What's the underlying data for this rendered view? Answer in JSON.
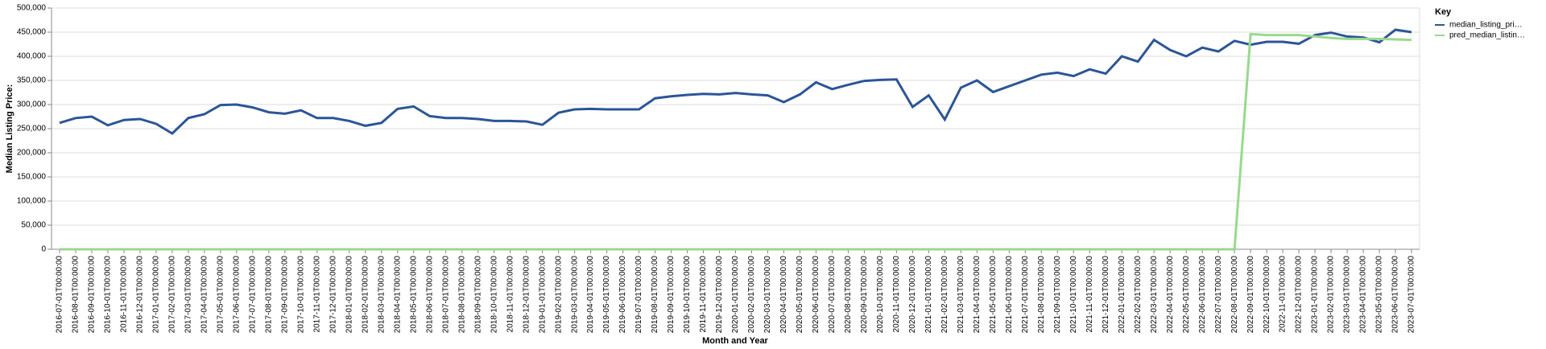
{
  "chart_data": {
    "type": "line",
    "x_label": "Month and Year",
    "y_label": "Median Listing Price:",
    "legend_title": "Key",
    "legend_position": "right",
    "grid": true,
    "categories": [
      "2016-07-01T00:00:00",
      "2016-08-01T00:00:00",
      "2016-09-01T00:00:00",
      "2016-10-01T00:00:00",
      "2016-11-01T00:00:00",
      "2016-12-01T00:00:00",
      "2017-01-01T00:00:00",
      "2017-02-01T00:00:00",
      "2017-03-01T00:00:00",
      "2017-04-01T00:00:00",
      "2017-05-01T00:00:00",
      "2017-06-01T00:00:00",
      "2017-07-01T00:00:00",
      "2017-08-01T00:00:00",
      "2017-09-01T00:00:00",
      "2017-10-01T00:00:00",
      "2017-11-01T00:00:00",
      "2017-12-01T00:00:00",
      "2018-01-01T00:00:00",
      "2018-02-01T00:00:00",
      "2018-03-01T00:00:00",
      "2018-04-01T00:00:00",
      "2018-05-01T00:00:00",
      "2018-06-01T00:00:00",
      "2018-07-01T00:00:00",
      "2018-08-01T00:00:00",
      "2018-09-01T00:00:00",
      "2018-10-01T00:00:00",
      "2018-11-01T00:00:00",
      "2018-12-01T00:00:00",
      "2019-01-01T00:00:00",
      "2019-02-01T00:00:00",
      "2019-03-01T00:00:00",
      "2019-04-01T00:00:00",
      "2019-05-01T00:00:00",
      "2019-06-01T00:00:00",
      "2019-07-01T00:00:00",
      "2019-08-01T00:00:00",
      "2019-09-01T00:00:00",
      "2019-10-01T00:00:00",
      "2019-11-01T00:00:00",
      "2019-12-01T00:00:00",
      "2020-01-01T00:00:00",
      "2020-02-01T00:00:00",
      "2020-03-01T00:00:00",
      "2020-04-01T00:00:00",
      "2020-05-01T00:00:00",
      "2020-06-01T00:00:00",
      "2020-07-01T00:00:00",
      "2020-08-01T00:00:00",
      "2020-09-01T00:00:00",
      "2020-10-01T00:00:00",
      "2020-11-01T00:00:00",
      "2020-12-01T00:00:00",
      "2021-01-01T00:00:00",
      "2021-02-01T00:00:00",
      "2021-03-01T00:00:00",
      "2021-04-01T00:00:00",
      "2021-05-01T00:00:00",
      "2021-06-01T00:00:00",
      "2021-07-01T00:00:00",
      "2021-08-01T00:00:00",
      "2021-09-01T00:00:00",
      "2021-10-01T00:00:00",
      "2021-11-01T00:00:00",
      "2021-12-01T00:00:00",
      "2022-01-01T00:00:00",
      "2022-02-01T00:00:00",
      "2022-03-01T00:00:00",
      "2022-04-01T00:00:00",
      "2022-05-01T00:00:00",
      "2022-06-01T00:00:00",
      "2022-07-01T00:00:00",
      "2022-08-01T00:00:00",
      "2022-09-01T00:00:00",
      "2022-10-01T00:00:00",
      "2022-11-01T00:00:00",
      "2022-12-01T00:00:00",
      "2023-01-01T00:00:00",
      "2023-02-01T00:00:00",
      "2023-03-01T00:00:00",
      "2023-04-01T00:00:00",
      "2023-05-01T00:00:00",
      "2023-06-01T00:00:00",
      "2023-07-01T00:00:00"
    ],
    "series": [
      {
        "name": "median_listing_pri…",
        "color": "#2c5597",
        "values": [
          262000,
          272000,
          275000,
          257000,
          268000,
          270000,
          260000,
          240000,
          272000,
          280000,
          299000,
          300000,
          294000,
          284000,
          281000,
          288000,
          272000,
          272000,
          266000,
          256000,
          262000,
          291000,
          296000,
          276000,
          272000,
          272000,
          270000,
          266000,
          266000,
          265000,
          258000,
          283000,
          290000,
          291000,
          290000,
          290000,
          290000,
          313000,
          317000,
          320000,
          322000,
          321000,
          324000,
          321000,
          319000,
          305000,
          321000,
          346000,
          332000,
          341000,
          349000,
          351000,
          352000,
          295000,
          319000,
          269000,
          335000,
          350000,
          326000,
          338000,
          350000,
          362000,
          366000,
          359000,
          373000,
          364000,
          400000,
          389000,
          434000,
          413000,
          400000,
          418000,
          410000,
          432000,
          424000,
          430000,
          430000,
          426000,
          444000,
          449000,
          441000,
          439000,
          429000,
          455000,
          450000
        ]
      },
      {
        "name": "pred_median_listin…",
        "color": "#98d98e",
        "values": [
          0,
          0,
          0,
          0,
          0,
          0,
          0,
          0,
          0,
          0,
          0,
          0,
          0,
          0,
          0,
          0,
          0,
          0,
          0,
          0,
          0,
          0,
          0,
          0,
          0,
          0,
          0,
          0,
          0,
          0,
          0,
          0,
          0,
          0,
          0,
          0,
          0,
          0,
          0,
          0,
          0,
          0,
          0,
          0,
          0,
          0,
          0,
          0,
          0,
          0,
          0,
          0,
          0,
          0,
          0,
          0,
          0,
          0,
          0,
          0,
          0,
          0,
          0,
          0,
          0,
          0,
          0,
          0,
          0,
          0,
          0,
          0,
          0,
          0,
          446000,
          444000,
          444000,
          444000,
          441000,
          438000,
          436000,
          436000,
          436000,
          435000,
          434000
        ]
      }
    ],
    "ylim": [
      0,
      500000
    ],
    "yticks": [
      0,
      {
        "value": 50000,
        "label": "50,000"
      },
      {
        "value": 100000,
        "label": "100,000"
      },
      {
        "value": 150000,
        "label": "150,000"
      },
      {
        "value": 200000,
        "label": "200,000"
      },
      {
        "value": 250000,
        "label": "250,000"
      },
      {
        "value": 300000,
        "label": "300,000"
      },
      {
        "value": 350000,
        "label": "350,000"
      },
      {
        "value": 400000,
        "label": "400,000"
      },
      {
        "value": 450000,
        "label": "450,000"
      },
      {
        "value": 500000,
        "label": "500,000"
      }
    ]
  }
}
